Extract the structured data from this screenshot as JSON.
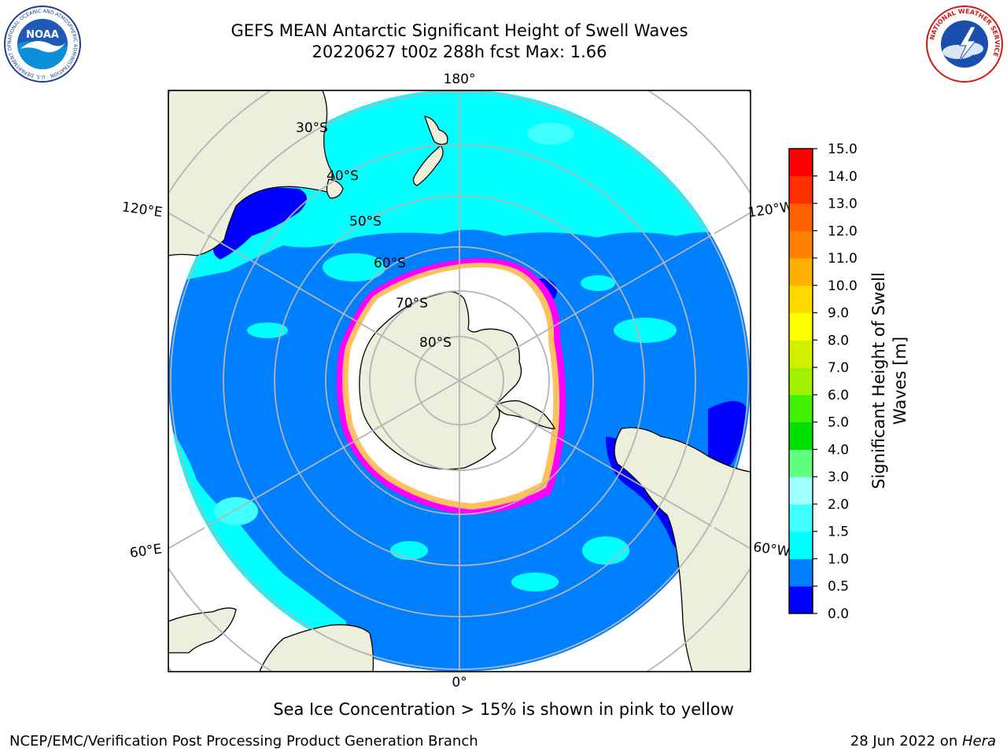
{
  "title": {
    "line1": "GEFS MEAN Antarctic Significant Height of Swell Waves",
    "line2": "20220627 t00z 288h fcst   Max: 1.66"
  },
  "logos": {
    "left": {
      "name": "noaa-logo",
      "text": "NOAA",
      "ring_text": "NATIONAL OCEANIC AND ATMOSPHERIC ADMINISTRATION · U.S. DEPARTMENT OF COMMERCE"
    },
    "right": {
      "name": "nws-logo",
      "ring_text": "NATIONAL WEATHER SERVICE"
    }
  },
  "map": {
    "projection": "south polar stereographic",
    "longitude_labels": [
      "180°",
      "120°E",
      "120°W",
      "60°E",
      "60°W",
      "0°"
    ],
    "latitude_labels": [
      "30°S",
      "40°S",
      "50°S",
      "60°S",
      "70°S",
      "80°S"
    ],
    "colors": {
      "land": "#eeeedc",
      "ocean_0_0.5": "#0000ff",
      "ocean_0.5_1.0": "#0080ff",
      "ocean_1.0_1.5": "#00ffff",
      "ocean_1.5_2.0": "#40ffff",
      "sea_ice_edge": [
        "#ff00ff",
        "#ffa0c0",
        "#ffc060",
        "#ffd080"
      ],
      "sea_ice_interior": "#ffffff",
      "grid": "#b4b4b4"
    }
  },
  "colorbar": {
    "label_line1": "Significant Height of Swell",
    "label_line2": "Waves [m]",
    "ticks": [
      "0.0",
      "0.5",
      "1.0",
      "1.5",
      "2.0",
      "3.0",
      "4.0",
      "5.0",
      "6.0",
      "7.0",
      "8.0",
      "9.0",
      "10.0",
      "11.0",
      "12.0",
      "13.0",
      "14.0",
      "15.0"
    ],
    "colors": [
      "#0000ff",
      "#0080ff",
      "#00ffff",
      "#40ffff",
      "#a0ffff",
      "#60ff80",
      "#00e000",
      "#40f000",
      "#a0f000",
      "#d0f000",
      "#ffff00",
      "#ffd800",
      "#ffb000",
      "#ff8000",
      "#ff6000",
      "#ff3000",
      "#ff0000"
    ]
  },
  "caption": "Sea Ice Concentration > 15% is shown in pink to yellow",
  "footer": {
    "left": "NCEP/EMC/Verification Post Processing Product Generation Branch",
    "right_prefix": "28 Jun 2022 on ",
    "right_host": "Hera"
  }
}
